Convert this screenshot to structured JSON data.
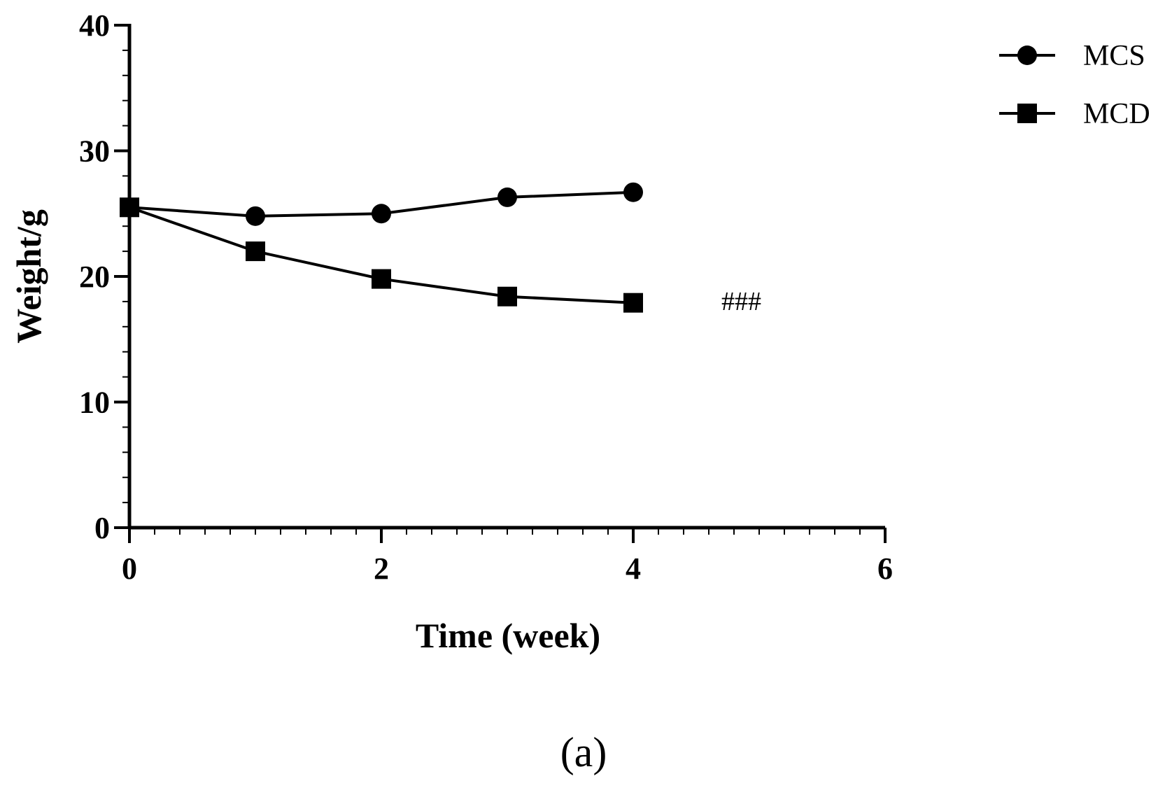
{
  "chart_data": {
    "type": "line",
    "xlabel": "Time (week)",
    "ylabel": "Weight/g",
    "xlim": [
      0,
      6
    ],
    "ylim": [
      0,
      40
    ],
    "xticks": [
      0,
      2,
      4,
      6
    ],
    "yticks": [
      0,
      10,
      20,
      30,
      40
    ],
    "x": [
      0,
      1,
      2,
      3,
      4
    ],
    "series": [
      {
        "name": "MCS",
        "marker": "circle",
        "values": [
          25.5,
          24.8,
          25.0,
          26.3,
          26.7
        ]
      },
      {
        "name": "MCD",
        "marker": "square",
        "values": [
          25.5,
          22.0,
          19.8,
          18.4,
          17.9
        ]
      }
    ],
    "legend_position": "top-right",
    "annotations": [
      {
        "text": "###",
        "x": 4.7,
        "y": 18.0
      }
    ],
    "panel_label": "(a)"
  }
}
